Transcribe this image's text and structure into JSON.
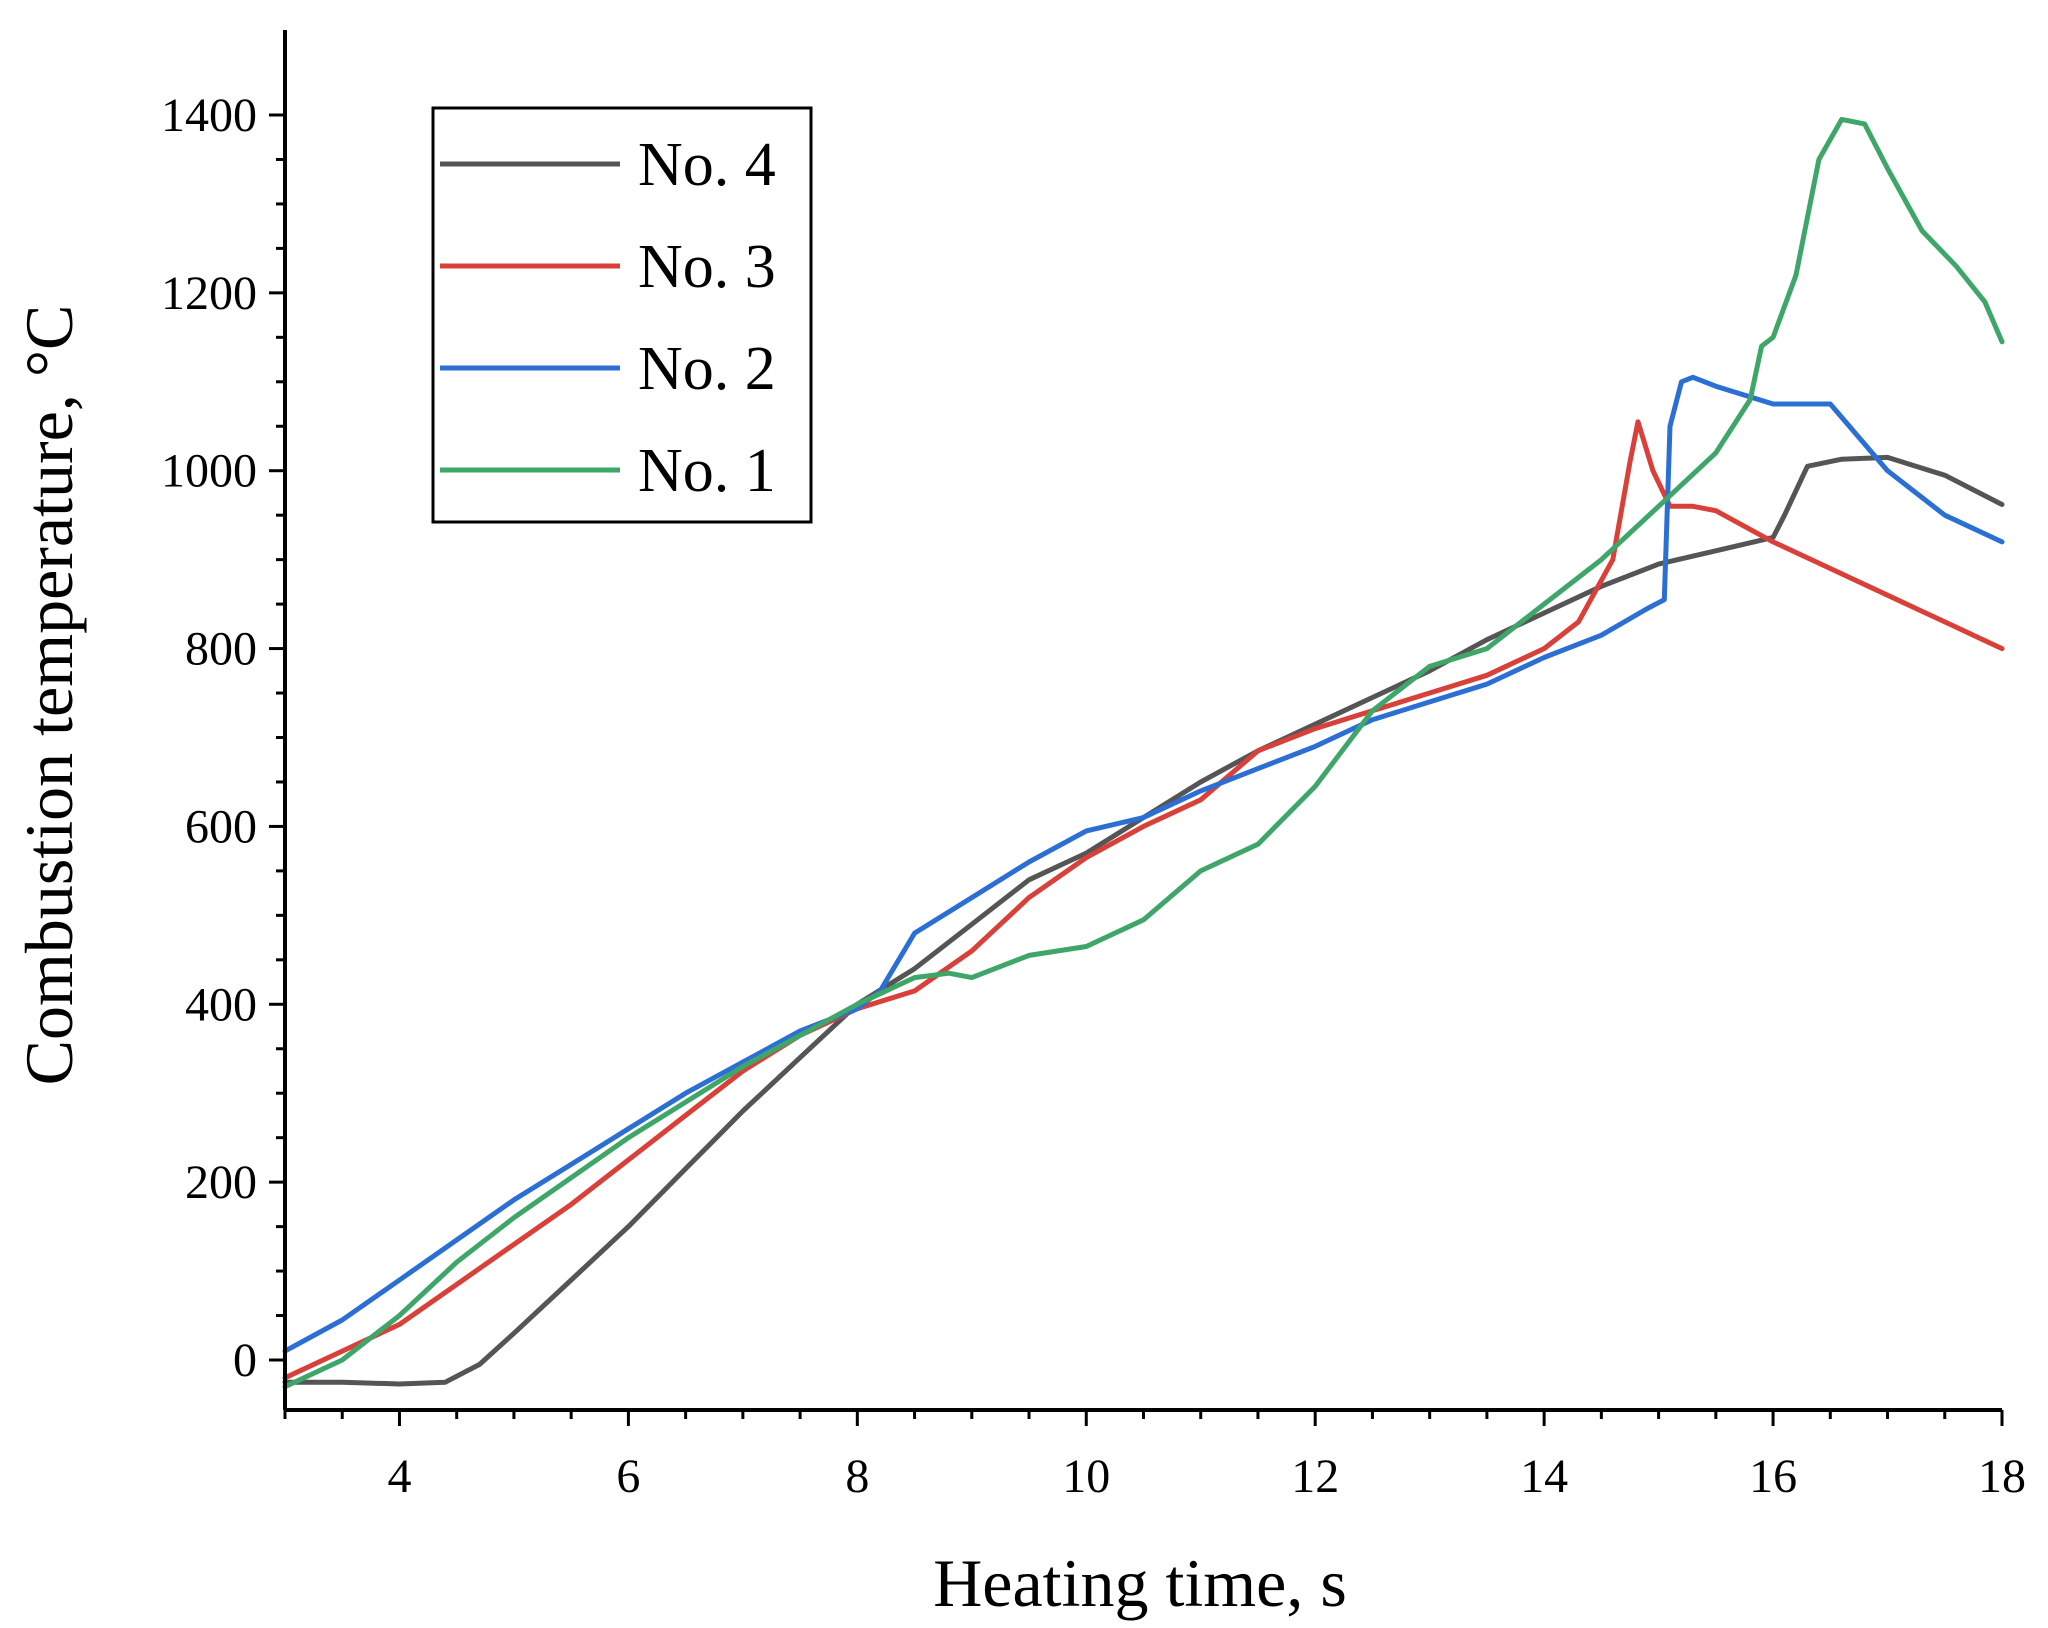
{
  "chart_data": {
    "type": "line",
    "title": "",
    "xlabel": "Heating time, s",
    "ylabel": "Combustion temperature, °C",
    "xlim": [
      3,
      18
    ],
    "ylim": [
      -50,
      1500
    ],
    "x_ticks": [
      4,
      6,
      8,
      10,
      12,
      14,
      16,
      18
    ],
    "x_tick_labels": [
      "4",
      "6",
      "8",
      "10",
      "12",
      "14",
      "16",
      "18"
    ],
    "y_ticks": [
      0,
      200,
      400,
      600,
      800,
      1000,
      1200,
      1400
    ],
    "y_tick_labels": [
      "0",
      "200",
      "400",
      "600",
      "800",
      "1000",
      "1200",
      "1400"
    ],
    "grid": false,
    "legend_position": "top-left",
    "series": [
      {
        "name": "No. 4",
        "color": "#555555",
        "x": [
          3.0,
          3.5,
          4.0,
          4.4,
          4.7,
          5.0,
          5.5,
          6.0,
          6.5,
          7.0,
          7.5,
          8.0,
          8.5,
          9.0,
          9.5,
          10.0,
          10.5,
          11.0,
          11.5,
          12.0,
          12.5,
          13.0,
          13.5,
          14.0,
          14.5,
          15.0,
          15.5,
          16.0,
          16.1,
          16.3,
          16.6,
          17.0,
          17.5,
          18.0
        ],
        "y": [
          -25,
          -25,
          -27,
          -25,
          -5,
          30,
          90,
          150,
          215,
          280,
          340,
          400,
          440,
          490,
          540,
          570,
          610,
          650,
          685,
          715,
          745,
          775,
          810,
          840,
          870,
          895,
          910,
          925,
          950,
          1005,
          1013,
          1015,
          995,
          962
        ]
      },
      {
        "name": "No. 3",
        "color": "#d9403a",
        "x": [
          3.0,
          3.5,
          4.0,
          4.5,
          5.0,
          5.5,
          6.0,
          6.5,
          7.0,
          7.5,
          8.0,
          8.5,
          9.0,
          9.5,
          10.0,
          10.5,
          11.0,
          11.5,
          12.0,
          12.5,
          13.0,
          13.5,
          14.0,
          14.3,
          14.6,
          14.75,
          14.82,
          14.95,
          15.1,
          15.3,
          15.5,
          16.0,
          16.5,
          17.0,
          17.5,
          18.0
        ],
        "y": [
          -20,
          10,
          40,
          85,
          130,
          175,
          225,
          275,
          325,
          365,
          395,
          415,
          460,
          520,
          565,
          600,
          630,
          685,
          710,
          730,
          750,
          770,
          800,
          830,
          900,
          1010,
          1055,
          1000,
          960,
          960,
          955,
          920,
          890,
          860,
          830,
          800
        ]
      },
      {
        "name": "No. 2",
        "color": "#2b6fd4",
        "x": [
          3.0,
          3.5,
          4.0,
          4.5,
          5.0,
          5.5,
          6.0,
          6.5,
          7.0,
          7.5,
          8.0,
          8.2,
          8.5,
          9.0,
          9.5,
          10.0,
          10.5,
          11.0,
          11.5,
          12.0,
          12.5,
          13.0,
          13.5,
          14.0,
          14.5,
          14.9,
          15.05,
          15.1,
          15.2,
          15.3,
          15.5,
          16.0,
          16.5,
          17.0,
          17.5,
          18.0
        ],
        "y": [
          10,
          45,
          90,
          135,
          180,
          220,
          260,
          300,
          335,
          370,
          395,
          415,
          480,
          520,
          560,
          595,
          610,
          640,
          665,
          690,
          720,
          740,
          760,
          790,
          815,
          845,
          855,
          1050,
          1100,
          1105,
          1095,
          1075,
          1075,
          1000,
          950,
          920
        ]
      },
      {
        "name": "No. 1",
        "color": "#3fa66a",
        "x": [
          3.0,
          3.5,
          4.0,
          4.5,
          5.0,
          5.5,
          6.0,
          6.5,
          7.0,
          7.5,
          8.0,
          8.5,
          8.8,
          9.0,
          9.5,
          10.0,
          10.5,
          11.0,
          11.5,
          12.0,
          12.5,
          13.0,
          13.5,
          14.0,
          14.5,
          15.0,
          15.5,
          15.8,
          15.9,
          16.0,
          16.2,
          16.4,
          16.6,
          16.8,
          17.0,
          17.3,
          17.6,
          17.85,
          18.0
        ],
        "y": [
          -30,
          0,
          50,
          110,
          160,
          205,
          250,
          290,
          330,
          365,
          400,
          430,
          435,
          430,
          455,
          465,
          495,
          550,
          580,
          645,
          730,
          780,
          800,
          850,
          900,
          960,
          1020,
          1080,
          1140,
          1150,
          1220,
          1350,
          1395,
          1390,
          1340,
          1270,
          1230,
          1190,
          1145
        ]
      }
    ]
  }
}
